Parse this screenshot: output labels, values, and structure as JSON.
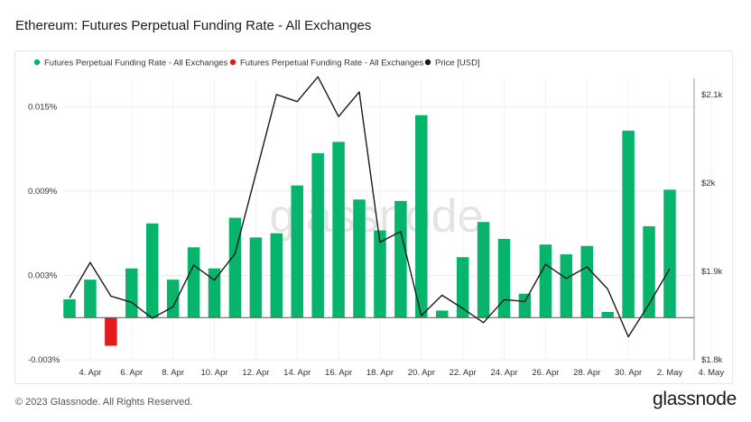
{
  "page": {
    "title": "Ethereum: Futures Perpetual Funding Rate - All Exchanges",
    "footer": "© 2023 Glassnode. All Rights Reserved.",
    "brand": "glassnode",
    "watermark": "glassnode"
  },
  "chart_data": {
    "type": "bar",
    "title": "Ethereum: Futures Perpetual Funding Rate - All Exchanges",
    "legend_position": "top-left",
    "grid": true,
    "colors": {
      "positive": "#06b46b",
      "negative": "#e31a1c",
      "price": "#1a1a1a"
    },
    "x_ticks": [
      "4. Apr",
      "6. Apr",
      "8. Apr",
      "10. Apr",
      "12. Apr",
      "14. Apr",
      "16. Apr",
      "18. Apr",
      "20. Apr",
      "22. Apr",
      "24. Apr",
      "26. Apr",
      "28. Apr",
      "30. Apr",
      "2. May",
      "4. May"
    ],
    "y_left": {
      "ticks": [
        "-0.003%",
        "0.003%",
        "0.009%",
        "0.015%"
      ],
      "tick_values": [
        -0.003,
        0.003,
        0.009,
        0.015
      ],
      "range": [
        -0.003,
        0.0165
      ]
    },
    "y_right": {
      "ticks": [
        "$1.8k",
        "$1.9k",
        "$2k",
        "$2.1k"
      ],
      "tick_values": [
        1800,
        1900,
        2000,
        2100
      ],
      "range": [
        1800,
        2110
      ]
    },
    "series": [
      {
        "name": "Futures Perpetual Funding Rate - All Exchanges",
        "kind": "bar",
        "color": "#06b46b",
        "x": [
          "3. Apr",
          "4. Apr",
          "5. Apr",
          "6. Apr",
          "7. Apr",
          "8. Apr",
          "9. Apr",
          "10. Apr",
          "11. Apr",
          "12. Apr",
          "13. Apr",
          "14. Apr",
          "15. Apr",
          "16. Apr",
          "17. Apr",
          "18. Apr",
          "19. Apr",
          "20. Apr",
          "21. Apr",
          "22. Apr",
          "23. Apr",
          "24. Apr",
          "25. Apr",
          "26. Apr",
          "27. Apr",
          "28. Apr",
          "29. Apr",
          "30. Apr",
          "1. May",
          "2. May",
          "3. May"
        ],
        "values": [
          0.0013,
          0.0027,
          -0.002,
          0.0035,
          0.0067,
          0.0027,
          0.005,
          0.0035,
          0.0071,
          0.0057,
          0.006,
          0.0094,
          0.0117,
          0.0125,
          0.0084,
          0.0062,
          0.0083,
          0.0144,
          0.0005,
          0.0043,
          0.0068,
          0.0056,
          0.0017,
          0.0052,
          0.0045,
          0.0051,
          0.0004,
          0.0133,
          0.0065,
          0.0091,
          null
        ]
      },
      {
        "name": "Futures Perpetual Funding Rate - All Exchanges",
        "kind": "bar-negative",
        "color": "#e31a1c"
      },
      {
        "name": "Price [USD]",
        "kind": "line",
        "color": "#1a1a1a",
        "axis": "right",
        "x": [
          "3. Apr",
          "4. Apr",
          "5. Apr",
          "6. Apr",
          "7. Apr",
          "8. Apr",
          "9. Apr",
          "10. Apr",
          "11. Apr",
          "12. Apr",
          "13. Apr",
          "14. Apr",
          "15. Apr",
          "16. Apr",
          "17. Apr",
          "18. Apr",
          "19. Apr",
          "20. Apr",
          "21. Apr",
          "22. Apr",
          "23. Apr",
          "24. Apr",
          "25. Apr",
          "26. Apr",
          "27. Apr",
          "28. Apr",
          "29. Apr",
          "30. Apr",
          "1. May",
          "2. May",
          "3. May"
        ],
        "values": [
          1870,
          1910,
          1872,
          1865,
          1847,
          1860,
          1907,
          1890,
          1920,
          2010,
          2100,
          2092,
          2120,
          2075,
          2103,
          1933,
          1945,
          1850,
          1873,
          1858,
          1842,
          1868,
          1866,
          1908,
          1892,
          1905,
          1880,
          1826,
          1863,
          1903,
          null
        ]
      }
    ]
  }
}
